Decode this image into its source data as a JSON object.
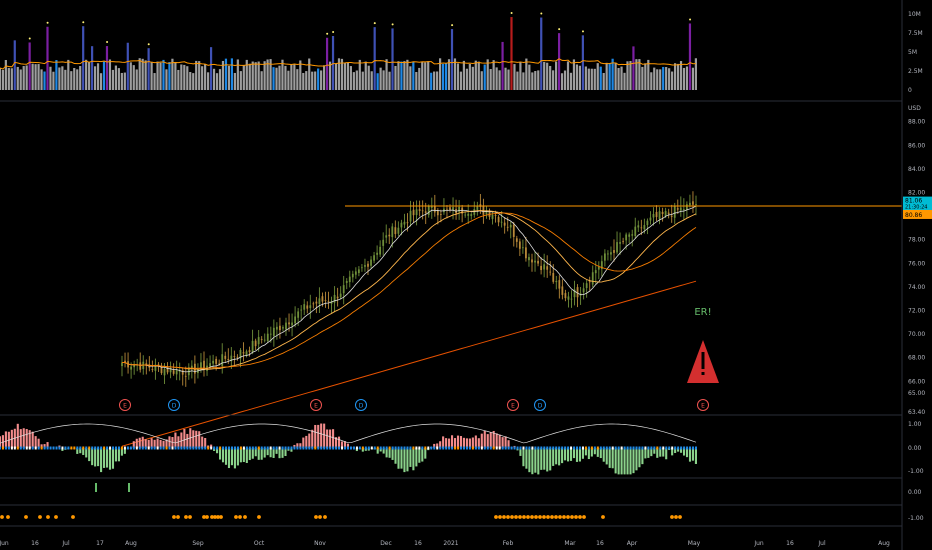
{
  "chart_data": {
    "type": "line",
    "price_axis": {
      "unit_label": "USD",
      "ticks": [
        "88.00",
        "86.00",
        "84.00",
        "82.00",
        "80.00",
        "78.00",
        "76.00",
        "74.00",
        "72.00",
        "70.00",
        "68.00",
        "66.00",
        "65.00",
        "63.40"
      ],
      "ylim": [
        63.4,
        89.5
      ],
      "last_price": "81.06",
      "last_price_sub": "21:30:24",
      "level_price": "80.86",
      "level_value": 80.86
    },
    "volume_axis": {
      "ticks": [
        "10M",
        "7.5M",
        "5M",
        "2.5M",
        "0"
      ],
      "ylim": [
        0,
        10000000
      ]
    },
    "osc_axis": {
      "ticks": [
        "1.00",
        "0.00",
        "-1.00"
      ],
      "ylim": [
        -1,
        1
      ]
    },
    "signal_axis": {
      "ticks": [
        "0.00"
      ]
    },
    "dots_axis": {
      "ticks": [
        "-1.00"
      ]
    },
    "x_axis": {
      "ticks": [
        "Jun",
        "16",
        "Jul",
        "17",
        "Aug",
        "Sep",
        "Oct",
        "Nov",
        "Dec",
        "16",
        "2021",
        "Feb",
        "Mar",
        "16",
        "Apr",
        "May",
        "Jun",
        "16",
        "Jul",
        "Aug"
      ]
    },
    "event_markers": [
      {
        "label": "E",
        "type": "earnings"
      },
      {
        "label": "D",
        "type": "dividend"
      },
      {
        "label": "E",
        "type": "earnings"
      },
      {
        "label": "D",
        "type": "dividend"
      },
      {
        "label": "E",
        "type": "earnings"
      },
      {
        "label": "D",
        "type": "dividend"
      },
      {
        "label": "E",
        "type": "earnings"
      }
    ],
    "annotation": "ER!",
    "colors": {
      "up": "#26a69a",
      "down": "#ef5350",
      "ema": "#ff9800",
      "sma200": "#e65100",
      "osc_pos": "#f28b8b",
      "osc_neg": "#8bd38b",
      "level": "#ff9800",
      "price_tag": "#00bcd4",
      "warning": "#d32f2f"
    }
  }
}
